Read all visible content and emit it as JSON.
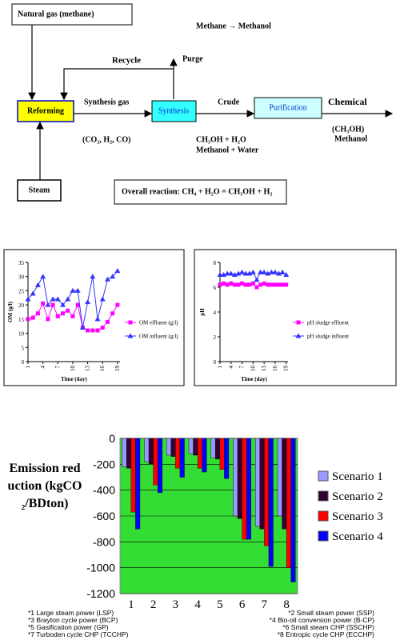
{
  "diagram": {
    "natural_gas": "Natural gas (methane)",
    "title": "Methane → Methanol",
    "recycle": "Recycle",
    "purge": "Purge",
    "reforming": "Reforming",
    "synthesis_gas": "Synthesis gas",
    "synthesis": "Synthesis",
    "crude": "Crude",
    "purification": "Purification",
    "chemical": "Chemical",
    "syngas_composition": "(CO₂, H₂, CO)",
    "crude_formula": "CH₃OH + H₂O",
    "crude_name": "Methanol + Water",
    "product_formula": "(CH₃OH)",
    "product_name": "Methanol",
    "steam": "Steam",
    "overall": "Overall reaction: CH₄ + H₂O = CH₃OH + H₂"
  },
  "chart_data": [
    {
      "type": "line",
      "y_label": "OM (g/l)",
      "x_label": "Time (day)",
      "x": [
        1,
        2,
        3,
        4,
        5,
        6,
        7,
        8,
        9,
        10,
        11,
        12,
        13,
        14,
        15,
        16,
        17,
        18,
        19
      ],
      "xlim": [
        1,
        19.5
      ],
      "xticks": [
        1,
        4,
        7,
        10,
        13,
        16,
        19
      ],
      "ylim": [
        0,
        35
      ],
      "yticks": [
        0,
        5,
        10,
        15,
        20,
        25,
        30,
        35
      ],
      "series": [
        {
          "name": "OM effluent (g/l)",
          "color": "#ff00ff",
          "marker": "square",
          "values": [
            15,
            15.5,
            17,
            20.5,
            15,
            20,
            16,
            17,
            18,
            16,
            20,
            12,
            11,
            11,
            11,
            12,
            14,
            17,
            20
          ]
        },
        {
          "name": "OM influent (g/l)",
          "color": "#3333ff",
          "marker": "triangle",
          "values": [
            22,
            24,
            27,
            30,
            20,
            22,
            22,
            20,
            22,
            25,
            25,
            12,
            21,
            30,
            15,
            22,
            29,
            30,
            32
          ]
        }
      ]
    },
    {
      "type": "line",
      "y_label": "pH",
      "x_label": "Time (day)",
      "x": [
        1,
        2,
        3,
        4,
        5,
        6,
        7,
        8,
        9,
        10,
        11,
        12,
        13,
        14,
        15,
        16,
        17,
        18,
        19
      ],
      "xlim": [
        1,
        19.5
      ],
      "xticks": [
        1,
        4,
        7,
        10,
        13,
        16,
        19
      ],
      "ylim": [
        0,
        8
      ],
      "yticks": [
        0,
        2,
        4,
        6,
        8
      ],
      "series": [
        {
          "name": "pH sludge effluent",
          "color": "#ff00ff",
          "marker": "square",
          "values": [
            6.2,
            6.3,
            6.2,
            6.3,
            6.2,
            6.2,
            6.3,
            6.2,
            6.2,
            6.3,
            6.0,
            6.2,
            6.3,
            6.2,
            6.2,
            6.2,
            6.2,
            6.2,
            6.2
          ]
        },
        {
          "name": "pH sludge influent",
          "color": "#3333ff",
          "marker": "triangle",
          "values": [
            7.0,
            7.0,
            7.1,
            7.1,
            7.0,
            7.1,
            7.2,
            7.1,
            7.1,
            7.2,
            6.6,
            7.2,
            7.2,
            7.1,
            7.2,
            7.2,
            7.1,
            7.2,
            7.0
          ]
        }
      ]
    },
    {
      "type": "bar",
      "y_label": "Emission reduction (kgCO₂/BDton)",
      "categories": [
        "1",
        "2",
        "3",
        "4",
        "5",
        "6",
        "7",
        "8"
      ],
      "ylim": [
        -1200,
        0
      ],
      "yticks": [
        0,
        -200,
        -400,
        -600,
        -800,
        -1000,
        -1200
      ],
      "grid": true,
      "plot_color": "#33dd33",
      "series": [
        {
          "name": "Scenario 1",
          "color": "#9999ff",
          "values": [
            -220,
            -180,
            -130,
            -120,
            -150,
            -600,
            -680,
            -600
          ]
        },
        {
          "name": "Scenario 2",
          "color": "#330033",
          "values": [
            -230,
            -200,
            -140,
            -130,
            -160,
            -620,
            -700,
            -700
          ]
        },
        {
          "name": "Scenario 3",
          "color": "#ff0000",
          "values": [
            -570,
            -360,
            -230,
            -230,
            -240,
            -780,
            -830,
            -1000
          ]
        },
        {
          "name": "Scenario 4",
          "color": "#0000ff",
          "values": [
            -700,
            -420,
            -300,
            -260,
            -310,
            -780,
            -990,
            -1110
          ]
        }
      ],
      "notes": [
        "*1 Large steam power (LSP)",
        "*2 Small steam power (SSP)",
        "*3 Brayton cycle power (BCP)",
        "*4 Bio-oil conversion power (B-CP)",
        "*5 Gasification power (GP)",
        "*6 Small steam CHP (SSCHP)",
        "*7 Turboden cycle CHP (TCCHP)",
        "*8 Entropic cycle CHP (ECCHP)"
      ]
    }
  ]
}
